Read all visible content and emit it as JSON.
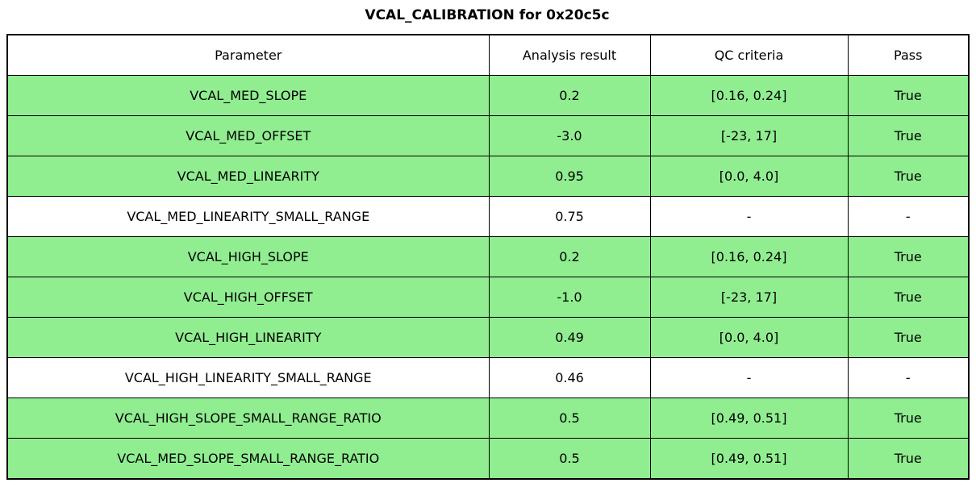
{
  "colors": {
    "pass_row_green": "#90EE90",
    "plain_row_white": "#ffffff",
    "border_black": "#000000"
  },
  "chart_data": {
    "type": "table",
    "title": "VCAL_CALIBRATION for 0x20c5c",
    "columns": [
      "Parameter",
      "Analysis result",
      "QC criteria",
      "Pass"
    ],
    "rows": [
      {
        "parameter": "VCAL_MED_SLOPE",
        "analysis_result": "0.2",
        "qc_criteria": "[0.16, 0.24]",
        "pass": "True",
        "highlighted": true
      },
      {
        "parameter": "VCAL_MED_OFFSET",
        "analysis_result": "-3.0",
        "qc_criteria": "[-23, 17]",
        "pass": "True",
        "highlighted": true
      },
      {
        "parameter": "VCAL_MED_LINEARITY",
        "analysis_result": "0.95",
        "qc_criteria": "[0.0, 4.0]",
        "pass": "True",
        "highlighted": true
      },
      {
        "parameter": "VCAL_MED_LINEARITY_SMALL_RANGE",
        "analysis_result": "0.75",
        "qc_criteria": "-",
        "pass": "-",
        "highlighted": false
      },
      {
        "parameter": "VCAL_HIGH_SLOPE",
        "analysis_result": "0.2",
        "qc_criteria": "[0.16, 0.24]",
        "pass": "True",
        "highlighted": true
      },
      {
        "parameter": "VCAL_HIGH_OFFSET",
        "analysis_result": "-1.0",
        "qc_criteria": "[-23, 17]",
        "pass": "True",
        "highlighted": true
      },
      {
        "parameter": "VCAL_HIGH_LINEARITY",
        "analysis_result": "0.49",
        "qc_criteria": "[0.0, 4.0]",
        "pass": "True",
        "highlighted": true
      },
      {
        "parameter": "VCAL_HIGH_LINEARITY_SMALL_RANGE",
        "analysis_result": "0.46",
        "qc_criteria": "-",
        "pass": "-",
        "highlighted": false
      },
      {
        "parameter": "VCAL_HIGH_SLOPE_SMALL_RANGE_RATIO",
        "analysis_result": "0.5",
        "qc_criteria": "[0.49, 0.51]",
        "pass": "True",
        "highlighted": true
      },
      {
        "parameter": "VCAL_MED_SLOPE_SMALL_RANGE_RATIO",
        "analysis_result": "0.5",
        "qc_criteria": "[0.49, 0.51]",
        "pass": "True",
        "highlighted": true
      }
    ]
  }
}
